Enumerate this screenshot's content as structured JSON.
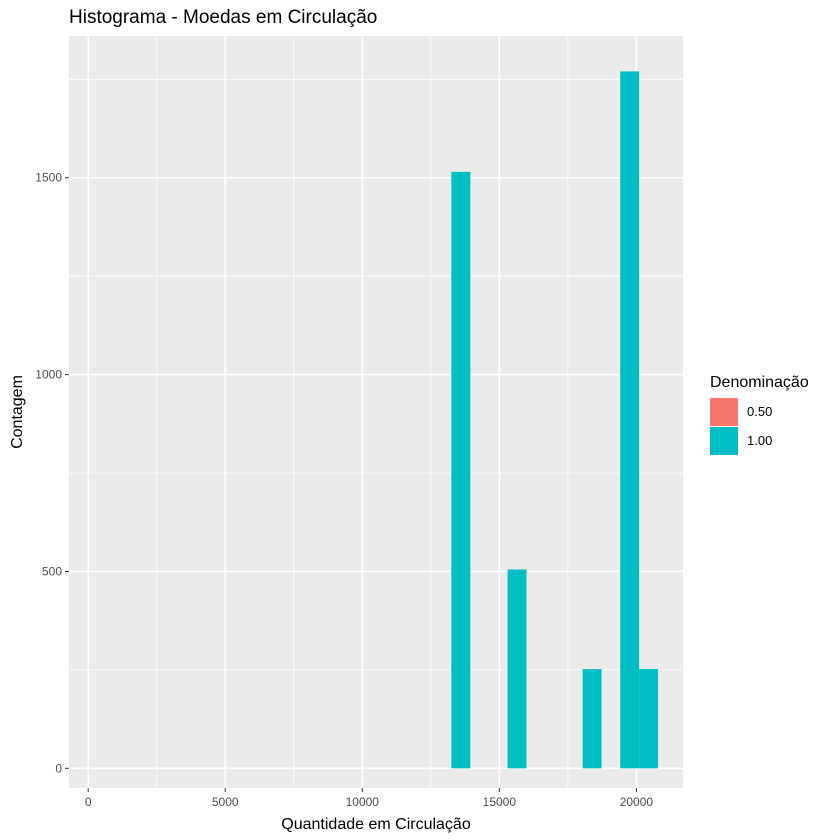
{
  "chart_data": {
    "type": "bar",
    "title": "Histograma - Moedas em Circulação",
    "xlabel": "Quantidade em Circulação",
    "ylabel": "Contagem",
    "xlim": [
      -700,
      21700
    ],
    "ylim": [
      -50,
      1860
    ],
    "x_ticks": [
      0,
      5000,
      10000,
      15000,
      20000
    ],
    "x_tick_labels": [
      "0",
      "5000",
      "10000",
      "15000",
      "20000"
    ],
    "y_ticks": [
      0,
      500,
      1000,
      1500
    ],
    "y_tick_labels": [
      "0",
      "500",
      "1000",
      "1500"
    ],
    "grid": true,
    "legend": {
      "title": "Denominação",
      "position": "right",
      "entries": [
        {
          "label": "0.50",
          "color": "#F8766D"
        },
        {
          "label": "1.00",
          "color": "#00BFC4"
        }
      ]
    },
    "bin_width": 690,
    "series": [
      {
        "name": "1.00",
        "color": "#00BFC4",
        "bins": [
          {
            "x_start": 13250,
            "x_end": 13940,
            "count": 1515
          },
          {
            "x_start": 15300,
            "x_end": 15990,
            "count": 505
          },
          {
            "x_start": 18040,
            "x_end": 18730,
            "count": 252
          },
          {
            "x_start": 19410,
            "x_end": 20100,
            "count": 1770
          },
          {
            "x_start": 20100,
            "x_end": 20790,
            "count": 252
          }
        ]
      },
      {
        "name": "0.50",
        "color": "#F8766D",
        "bins": []
      }
    ]
  }
}
